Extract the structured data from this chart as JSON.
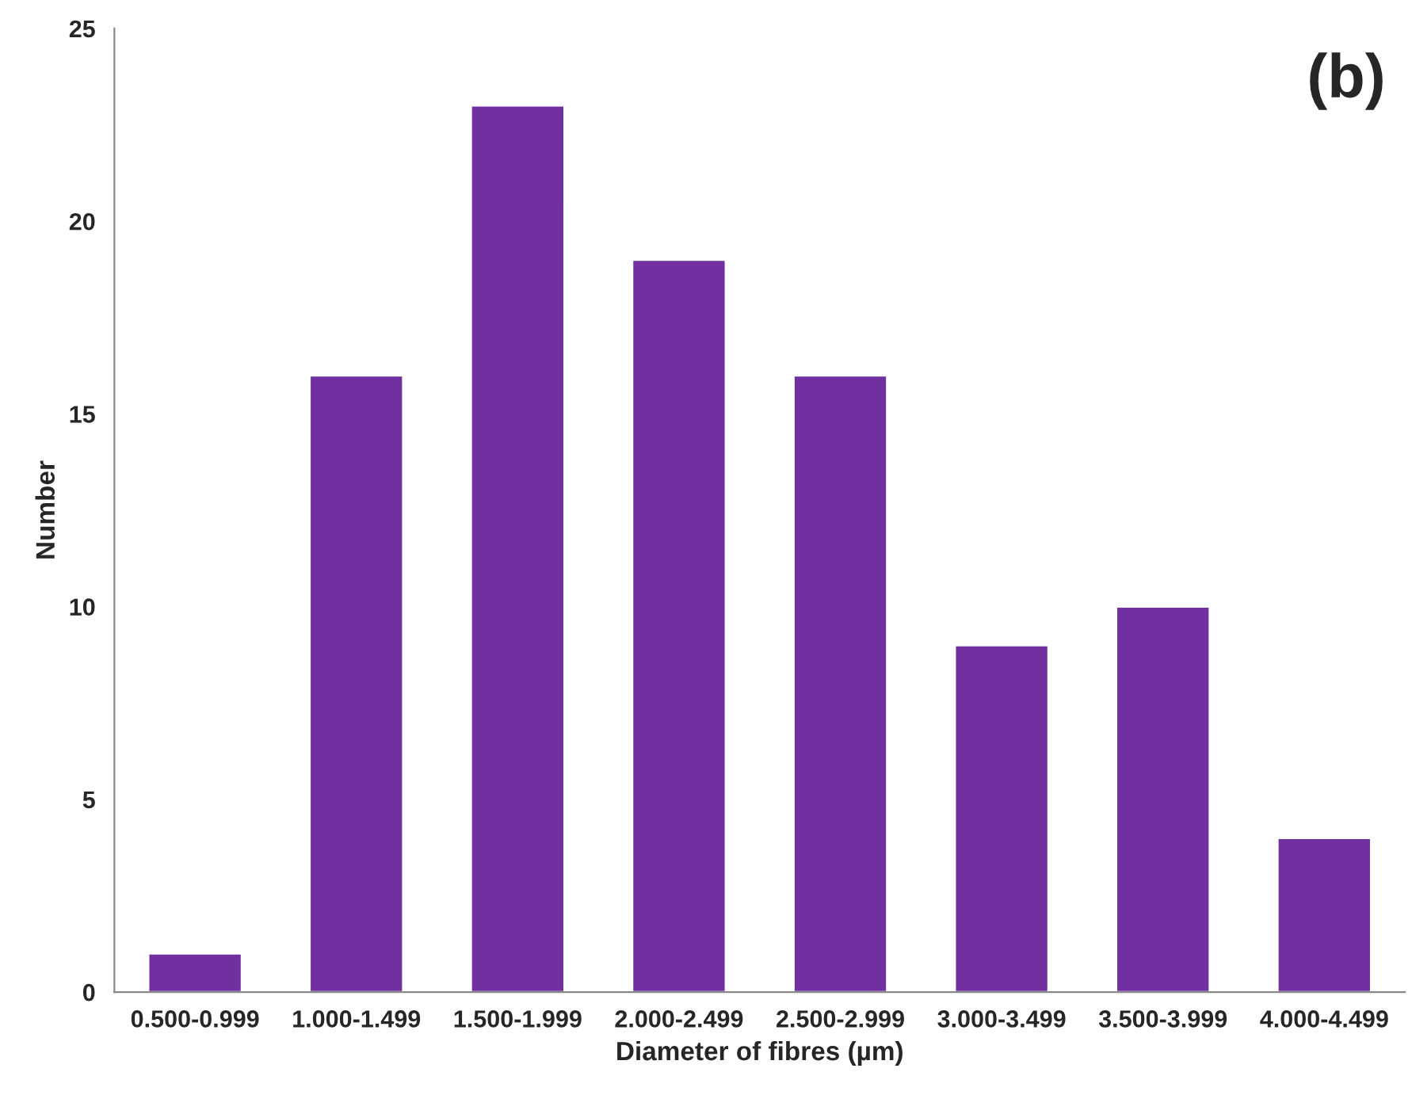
{
  "chart_data": {
    "type": "bar",
    "categories": [
      "0.500-0.999",
      "1.000-1.499",
      "1.500-1.999",
      "2.000-2.499",
      "2.500-2.999",
      "3.000-3.499",
      "3.500-3.999",
      "4.000-4.499"
    ],
    "values": [
      1,
      16,
      23,
      19,
      16,
      9,
      10,
      4
    ],
    "color": "#7030a0",
    "xlabel": "Diameter of fibres (µm)",
    "ylabel": "Number",
    "ylim": [
      0,
      25
    ],
    "yticks": [
      0,
      5,
      10,
      15,
      20,
      25
    ],
    "annotations": [
      "(b)"
    ],
    "grid": false,
    "legend": false
  }
}
